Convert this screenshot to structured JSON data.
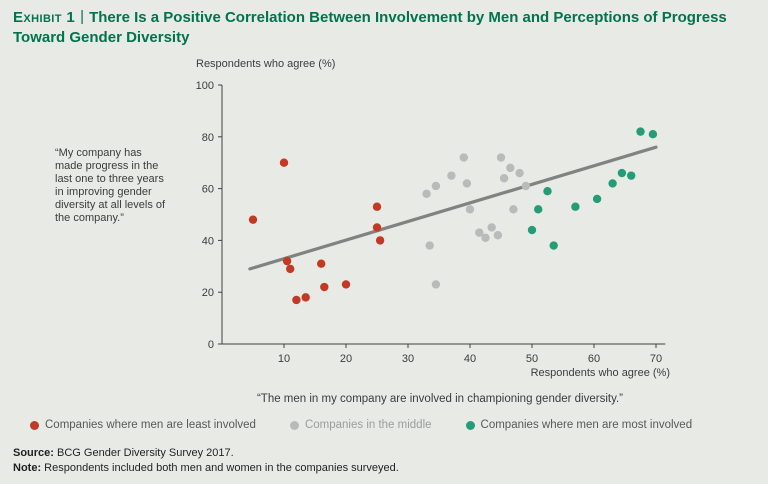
{
  "exhibit": {
    "label": "Exhibit 1",
    "separator": "|",
    "title": "There Is a Positive Correlation Between Involvement by Men and Perceptions of Progress Toward Gender Diversity"
  },
  "chart_data": {
    "type": "scatter",
    "y_axis_title": "Respondents who agree (%)",
    "x_axis_title": "Respondents who agree (%)",
    "y_annotation": "“My company has made progress in the last one to three years in improving gender diversity at all levels of the company.”",
    "x_caption": "“The men in my company are involved in championing gender diversity.”",
    "xlim": [
      0,
      71.5
    ],
    "ylim": [
      0,
      100
    ],
    "x_ticks": [
      10,
      20,
      30,
      40,
      50,
      60,
      70
    ],
    "y_ticks": [
      0,
      20,
      40,
      60,
      80,
      100
    ],
    "grid": "off",
    "legend_position": "bottom",
    "axis_color": "#3f4240",
    "trend_line": {
      "x1": 4.5,
      "y1": 29,
      "x2": 70,
      "y2": 76,
      "color": "#7f8382"
    },
    "series": [
      {
        "name": "Companies where men are least involved",
        "color": "#c23a26",
        "label_color": "#565a58",
        "points": [
          [
            5,
            48
          ],
          [
            10,
            70
          ],
          [
            10.5,
            32
          ],
          [
            11,
            29
          ],
          [
            12,
            17
          ],
          [
            13.5,
            18
          ],
          [
            16,
            31
          ],
          [
            16.5,
            22
          ],
          [
            20,
            23
          ],
          [
            25,
            53
          ],
          [
            25,
            45
          ],
          [
            25.5,
            40
          ]
        ]
      },
      {
        "name": "Companies in the middle",
        "color": "#b8bbb9",
        "label_color": "#9a9e9c",
        "points": [
          [
            33,
            58
          ],
          [
            34.5,
            61
          ],
          [
            33.5,
            38
          ],
          [
            34.5,
            23
          ],
          [
            37,
            65
          ],
          [
            39,
            72
          ],
          [
            39.5,
            62
          ],
          [
            40,
            52
          ],
          [
            41.5,
            43
          ],
          [
            42.5,
            41
          ],
          [
            43.5,
            45
          ],
          [
            44.5,
            42
          ],
          [
            45,
            72
          ],
          [
            45.5,
            64
          ],
          [
            46.5,
            68
          ],
          [
            47,
            52
          ],
          [
            48,
            66
          ],
          [
            49,
            61
          ]
        ]
      },
      {
        "name": "Companies where men are most involved",
        "color": "#239c77",
        "label_color": "#565a58",
        "points": [
          [
            50,
            44
          ],
          [
            51,
            52
          ],
          [
            52.5,
            59
          ],
          [
            53.5,
            38
          ],
          [
            57,
            53
          ],
          [
            60.5,
            56
          ],
          [
            63,
            62
          ],
          [
            64.5,
            66
          ],
          [
            66,
            65
          ],
          [
            67.5,
            82
          ],
          [
            69.5,
            81
          ]
        ]
      }
    ]
  },
  "footer": {
    "source_label": "Source:",
    "source_text": " BCG Gender Diversity Survey 2017.",
    "note_label": "Note:",
    "note_text": " Respondents included both men and women in the companies surveyed."
  }
}
